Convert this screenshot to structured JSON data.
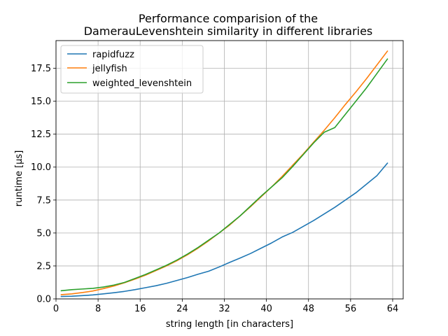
{
  "chart_data": {
    "type": "line",
    "title_line1": "Performance comparision of the",
    "title_line2": "DamerauLevenshtein similarity in different libraries",
    "xlabel": "string length [in characters]",
    "ylabel": "runtime [µs]",
    "xlim": [
      0,
      66
    ],
    "ylim": [
      0,
      19.6
    ],
    "xticks": [
      0,
      8,
      16,
      24,
      32,
      40,
      48,
      56,
      64
    ],
    "xtick_labels": [
      "0",
      "8",
      "16",
      "24",
      "32",
      "40",
      "48",
      "56",
      "64"
    ],
    "yticks": [
      0,
      2.5,
      5,
      7.5,
      10,
      12.5,
      15,
      17.5
    ],
    "ytick_labels": [
      "0.0",
      "2.5",
      "5.0",
      "7.5",
      "10.0",
      "12.5",
      "15.0",
      "17.5"
    ],
    "grid": true,
    "legend_position": "top-left",
    "series": [
      {
        "name": "rapidfuzz",
        "color": "#1f77b4",
        "x": [
          1,
          3,
          5,
          7,
          9,
          11,
          13,
          15,
          17,
          19,
          21,
          23,
          25,
          27,
          29,
          31,
          33,
          35,
          37,
          39,
          41,
          43,
          45,
          47,
          49,
          51,
          53,
          55,
          57,
          59,
          61,
          63
        ],
        "y": [
          0.18,
          0.2,
          0.25,
          0.3,
          0.38,
          0.47,
          0.57,
          0.7,
          0.85,
          1.0,
          1.18,
          1.4,
          1.62,
          1.87,
          2.1,
          2.42,
          2.77,
          3.1,
          3.45,
          3.85,
          4.25,
          4.7,
          5.05,
          5.5,
          5.95,
          6.45,
          6.95,
          7.5,
          8.05,
          8.7,
          9.35,
          10.3
        ]
      },
      {
        "name": "jellyfish",
        "color": "#ff7f0e",
        "x": [
          1,
          3,
          5,
          7,
          9,
          11,
          13,
          15,
          17,
          19,
          21,
          23,
          25,
          27,
          29,
          31,
          33,
          35,
          37,
          39,
          41,
          43,
          45,
          47,
          49,
          51,
          53,
          55,
          57,
          59,
          61,
          63
        ],
        "y": [
          0.32,
          0.38,
          0.48,
          0.6,
          0.78,
          0.98,
          1.22,
          1.5,
          1.8,
          2.15,
          2.5,
          2.9,
          3.35,
          3.85,
          4.4,
          5.0,
          5.6,
          6.3,
          7.0,
          7.75,
          8.5,
          9.3,
          10.15,
          11.0,
          11.9,
          12.8,
          13.75,
          14.75,
          15.7,
          16.7,
          17.75,
          18.8
        ]
      },
      {
        "name": "weighted_levenshtein",
        "color": "#2ca02c",
        "x": [
          1,
          3,
          5,
          7,
          9,
          11,
          13,
          15,
          17,
          19,
          21,
          23,
          25,
          27,
          29,
          31,
          33,
          35,
          37,
          39,
          41,
          43,
          45,
          47,
          49,
          51,
          53,
          55,
          57,
          59,
          61,
          63
        ],
        "y": [
          0.62,
          0.7,
          0.75,
          0.8,
          0.9,
          1.05,
          1.25,
          1.55,
          1.85,
          2.2,
          2.55,
          2.95,
          3.4,
          3.9,
          4.45,
          5.0,
          5.65,
          6.3,
          7.05,
          7.8,
          8.5,
          9.2,
          10.05,
          10.95,
          11.85,
          12.65,
          13.0,
          14.0,
          15.0,
          16.0,
          17.1,
          18.2
        ]
      }
    ]
  }
}
